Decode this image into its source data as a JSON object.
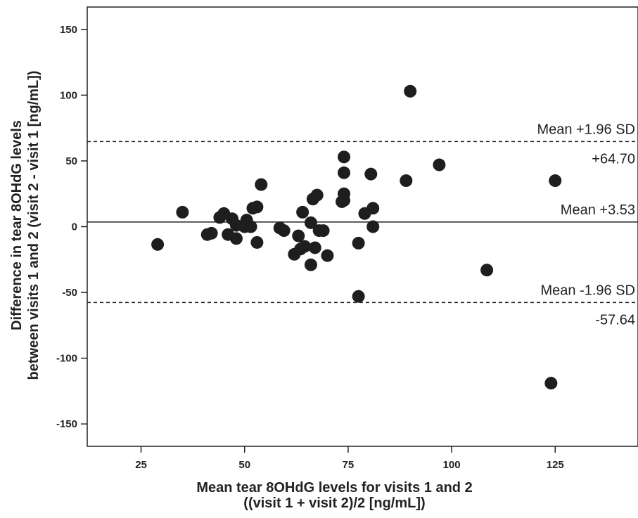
{
  "chart_data": {
    "type": "scatter",
    "xlabel": [
      "Mean tear 8OHdG levels for visits 1 and 2",
      "((visit 1 + visit 2)/2 [ng/mL])"
    ],
    "ylabel": [
      "Difference in tear 8OHdG levels",
      "between visits 1 and 2 (visit 2 - visit 1 [ng/mL])"
    ],
    "xlim": [
      12,
      145
    ],
    "ylim": [
      -167,
      167
    ],
    "xticks": [
      25,
      50,
      75,
      100,
      125
    ],
    "yticks": [
      150,
      100,
      50,
      0,
      -50,
      -100,
      -150
    ],
    "reference_lines": [
      {
        "label": "Mean +1.96 SD",
        "value_label": "+64.70",
        "y": 64.7,
        "style": "dashed"
      },
      {
        "label": "Mean +3.53",
        "value_label": "",
        "y": 3.53,
        "style": "solid"
      },
      {
        "label": "Mean -1.96 SD",
        "value_label": "-57.64",
        "y": -57.64,
        "style": "dashed"
      }
    ],
    "points": [
      [
        29,
        -13.5
      ],
      [
        35,
        11
      ],
      [
        41,
        -6
      ],
      [
        42,
        -5
      ],
      [
        44,
        7
      ],
      [
        45,
        10
      ],
      [
        46,
        -6
      ],
      [
        47,
        6
      ],
      [
        48,
        1
      ],
      [
        48,
        -9
      ],
      [
        50,
        0
      ],
      [
        50.5,
        5
      ],
      [
        51.5,
        0
      ],
      [
        52,
        14
      ],
      [
        53,
        15
      ],
      [
        53,
        -12
      ],
      [
        54,
        32
      ],
      [
        58.5,
        -1
      ],
      [
        59.5,
        -3
      ],
      [
        62,
        -21
      ],
      [
        63,
        -7
      ],
      [
        63.5,
        -17
      ],
      [
        64,
        11
      ],
      [
        64.5,
        -15
      ],
      [
        66,
        3
      ],
      [
        66,
        -29
      ],
      [
        66.5,
        21
      ],
      [
        67,
        -16
      ],
      [
        67.5,
        24
      ],
      [
        68,
        -3
      ],
      [
        69,
        -3
      ],
      [
        70,
        -22
      ],
      [
        73.5,
        19
      ],
      [
        74,
        20
      ],
      [
        74,
        41
      ],
      [
        74,
        53
      ],
      [
        74,
        25
      ],
      [
        77.5,
        -12.5
      ],
      [
        77.5,
        -53
      ],
      [
        79,
        10
      ],
      [
        80.5,
        40
      ],
      [
        81,
        0
      ],
      [
        81,
        14
      ],
      [
        89,
        35
      ],
      [
        90,
        103
      ],
      [
        97,
        47
      ],
      [
        108.5,
        -33
      ],
      [
        124,
        -119
      ],
      [
        125,
        35
      ]
    ],
    "point_color": "#1e1e1e",
    "grid": false
  }
}
